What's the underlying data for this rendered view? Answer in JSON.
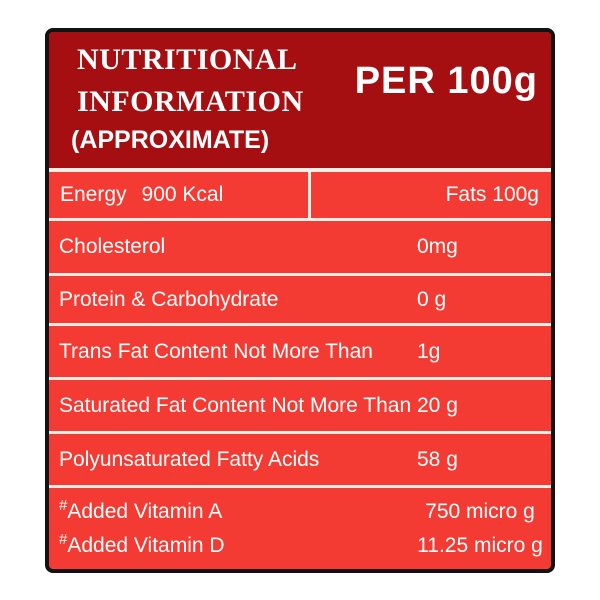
{
  "colors": {
    "page_bg": "#ffffff",
    "border": "#121212",
    "header_bg": "#a60f12",
    "body_bg": "#f43b33",
    "separator": "#f4efe6",
    "text": "#ffffff"
  },
  "header": {
    "title_line1": "NUTRITIONAL",
    "title_line2": "INFORMATION",
    "title_line3": "(APPROXIMATE)",
    "per_label": "PER 100g"
  },
  "table": {
    "energy": {
      "label": "Energy",
      "value": "900 Kcal"
    },
    "fats": "Fats 100g",
    "rows": [
      {
        "label": "Cholesterol",
        "value": "0mg"
      },
      {
        "label": "Protein & Carbohydrate",
        "value": "0 g"
      },
      {
        "label": "Trans Fat Content Not More Than",
        "value": "1g"
      },
      {
        "label": "Saturated Fat Content Not More Than",
        "value": "20 g"
      },
      {
        "label": "Polyunsaturated Fatty Acids",
        "value": "58 g"
      }
    ],
    "vitamins": [
      {
        "prefix": "#",
        "label": "Added Vitamin A",
        "value": "750 micro g"
      },
      {
        "prefix": "#",
        "label": "Added Vitamin D",
        "value": "11.25 micro g"
      }
    ]
  }
}
